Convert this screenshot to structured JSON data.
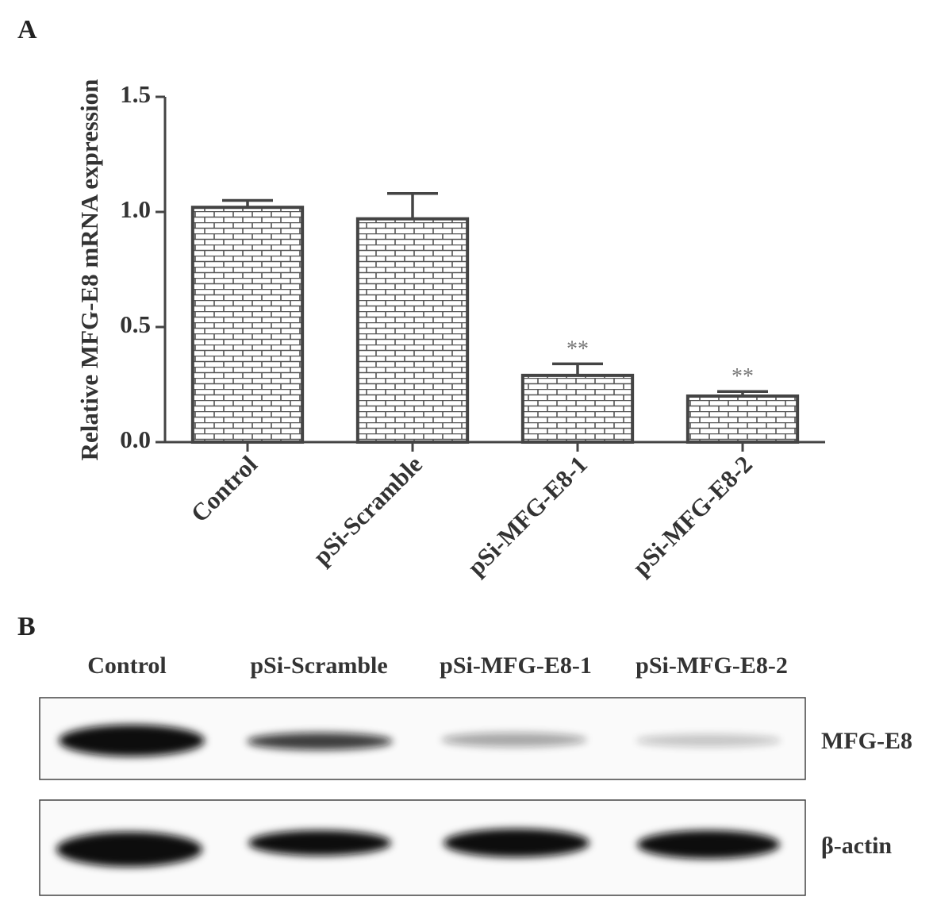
{
  "panel_a": {
    "label": "A"
  },
  "chart_data": {
    "type": "bar",
    "y_label": "Relative MFG-E8 mRNA expression",
    "categories": [
      "Control",
      "pSi-Scramble",
      "pSi-MFG-E8-1",
      "pSi-MFG-E8-2"
    ],
    "values": [
      1.02,
      0.97,
      0.29,
      0.2
    ],
    "errors": [
      0.03,
      0.11,
      0.05,
      0.02
    ],
    "significance": [
      null,
      null,
      "**",
      "**"
    ],
    "color": "#444444",
    "ylim": [
      0,
      1.5
    ],
    "yticks": [
      {
        "value": 0,
        "label": "0.0"
      },
      {
        "value": 0.5,
        "label": "0.5"
      },
      {
        "value": 1,
        "label": "1.0"
      },
      {
        "value": 1.5,
        "label": "1.5"
      }
    ]
  },
  "panel_b": {
    "label": "B",
    "lanes": [
      "Control",
      "pSi-Scramble",
      "pSi-MFG-E8-1",
      "pSi-MFG-E8-2"
    ],
    "rows": [
      "MFG-E8",
      "β-actin"
    ]
  }
}
